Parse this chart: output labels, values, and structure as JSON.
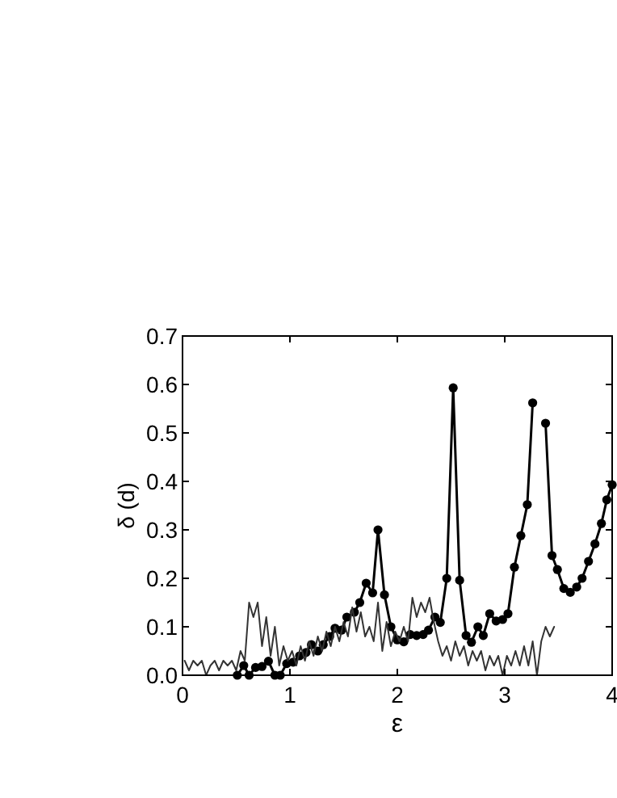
{
  "chart_data": {
    "type": "line",
    "xlabel": "ε",
    "ylabel": "δ (d)",
    "xlim": [
      0,
      4
    ],
    "ylim": [
      0,
      0.7
    ],
    "xticks": [
      0,
      1,
      2,
      3,
      4
    ],
    "yticks": [
      {
        "value": 0,
        "label": "0.0"
      },
      {
        "value": 0.1,
        "label": "0.1"
      },
      {
        "value": 0.2,
        "label": "0.2"
      },
      {
        "value": 0.3,
        "label": "0.3"
      },
      {
        "value": 0.4,
        "label": "0.4"
      },
      {
        "value": 0.5,
        "label": "0.5"
      },
      {
        "value": 0.6,
        "label": "0.6"
      },
      {
        "value": 0.7,
        "label": "0.7"
      }
    ],
    "grid": false,
    "series": [
      {
        "color": "#000000",
        "marker": "circle",
        "x": [
          0.51,
          0.57,
          0.62,
          0.68,
          0.74,
          0.8,
          0.86,
          0.91,
          0.97,
          1.03,
          1.09,
          1.15,
          1.2,
          1.26,
          1.31,
          1.37,
          1.42,
          1.48,
          1.53,
          1.6,
          1.65,
          1.71,
          1.77,
          1.82,
          1.88,
          1.94,
          2.0,
          2.06,
          2.12,
          2.18,
          2.24,
          2.29,
          2.35,
          2.4,
          2.46,
          2.52,
          2.58,
          2.64,
          2.69,
          2.75,
          2.8,
          2.86,
          2.92,
          2.98,
          3.03,
          3.09,
          3.15,
          3.21,
          3.26,
          3.32,
          3.38,
          3.44,
          3.49,
          3.55,
          3.61,
          3.67,
          3.72,
          3.78,
          3.84,
          3.9,
          3.95,
          4.0
        ],
        "values": [
          0.0,
          0.02,
          0.0,
          0.016,
          0.018,
          0.029,
          0.0,
          0.0,
          0.024,
          0.027,
          0.04,
          0.047,
          0.063,
          0.05,
          0.063,
          0.08,
          0.097,
          0.093,
          0.12,
          0.13,
          0.15,
          0.19,
          0.17,
          0.3,
          0.166,
          0.1,
          0.073,
          0.069,
          0.084,
          0.082,
          0.084,
          0.093,
          0.12,
          0.109,
          0.2,
          0.593,
          0.196,
          0.082,
          0.068,
          0.1,
          0.082,
          0.127,
          0.112,
          0.115,
          0.127,
          0.223,
          0.288,
          0.352,
          0.562,
          null,
          0.52,
          0.247,
          0.218,
          0.179,
          0.171,
          0.182,
          0.2,
          0.235,
          0.271,
          0.313,
          0.362,
          0.393
        ]
      },
      {
        "color": "#333333",
        "marker": "none",
        "x": [
          0.02,
          0.06,
          0.1,
          0.14,
          0.18,
          0.22,
          0.26,
          0.3,
          0.34,
          0.38,
          0.42,
          0.46,
          0.5,
          0.54,
          0.58,
          0.62,
          0.66,
          0.7,
          0.74,
          0.78,
          0.82,
          0.86,
          0.9,
          0.94,
          0.98,
          1.02,
          1.06,
          1.1,
          1.14,
          1.18,
          1.22,
          1.26,
          1.3,
          1.34,
          1.38,
          1.42,
          1.46,
          1.5,
          1.54,
          1.58,
          1.62,
          1.66,
          1.7,
          1.74,
          1.78,
          1.82,
          1.86,
          1.9,
          1.94,
          1.98,
          2.02,
          2.06,
          2.1,
          2.14,
          2.18,
          2.22,
          2.26,
          2.3,
          2.34,
          2.38,
          2.42,
          2.46,
          2.5,
          2.54,
          2.58,
          2.62,
          2.66,
          2.7,
          2.74,
          2.78,
          2.82,
          2.86,
          2.9,
          2.94,
          2.98,
          3.02,
          3.06,
          3.1,
          3.14,
          3.18,
          3.22,
          3.26,
          3.3,
          3.34,
          3.38,
          3.42,
          3.46
        ],
        "values": [
          0.03,
          0.01,
          0.03,
          0.02,
          0.03,
          0.0,
          0.02,
          0.03,
          0.01,
          0.03,
          0.02,
          0.03,
          0.01,
          0.05,
          0.03,
          0.15,
          0.12,
          0.15,
          0.06,
          0.12,
          0.04,
          0.1,
          0.02,
          0.06,
          0.03,
          0.05,
          0.02,
          0.06,
          0.03,
          0.07,
          0.04,
          0.08,
          0.05,
          0.09,
          0.06,
          0.1,
          0.07,
          0.11,
          0.08,
          0.14,
          0.09,
          0.13,
          0.08,
          0.1,
          0.07,
          0.15,
          0.05,
          0.11,
          0.06,
          0.09,
          0.07,
          0.1,
          0.07,
          0.16,
          0.12,
          0.15,
          0.13,
          0.16,
          0.11,
          0.07,
          0.04,
          0.06,
          0.03,
          0.07,
          0.04,
          0.06,
          0.02,
          0.05,
          0.03,
          0.05,
          0.01,
          0.04,
          0.02,
          0.04,
          0.0,
          0.04,
          0.02,
          0.05,
          0.02,
          0.06,
          0.02,
          0.07,
          0.0,
          0.07,
          0.1,
          0.08,
          0.1
        ]
      }
    ]
  }
}
